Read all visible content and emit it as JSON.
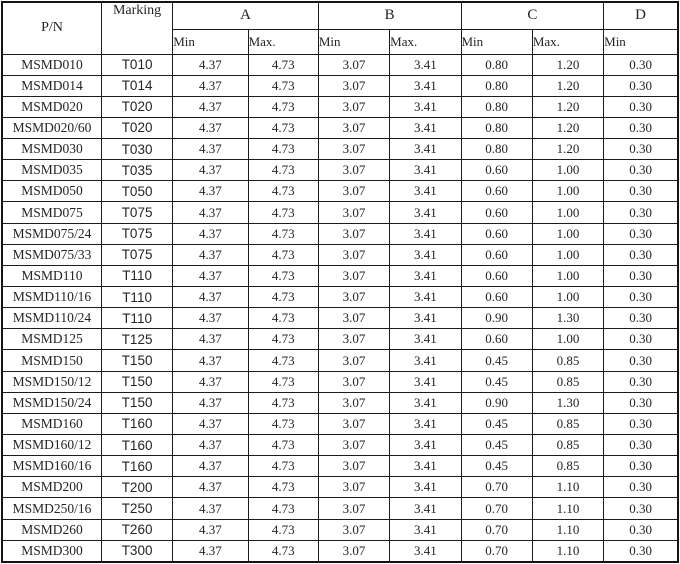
{
  "table": {
    "headers": {
      "pn": "P/N",
      "marking": "Marking",
      "group_a": "A",
      "group_b": "B",
      "group_c": "C",
      "group_d": "D",
      "min": "Min",
      "max": "Max."
    },
    "colors": {
      "border": "#1c1c1c",
      "text": "#242424",
      "background": "#ffffff"
    },
    "rows": [
      {
        "pn": "MSMD010",
        "marking": "T010",
        "a_min": "4.37",
        "a_max": "4.73",
        "b_min": "3.07",
        "b_max": "3.41",
        "c_min": "0.80",
        "c_max": "1.20",
        "d_min": "0.30"
      },
      {
        "pn": "MSMD014",
        "marking": "T014",
        "a_min": "4.37",
        "a_max": "4.73",
        "b_min": "3.07",
        "b_max": "3.41",
        "c_min": "0.80",
        "c_max": "1.20",
        "d_min": "0.30"
      },
      {
        "pn": "MSMD020",
        "marking": "T020",
        "a_min": "4.37",
        "a_max": "4.73",
        "b_min": "3.07",
        "b_max": "3.41",
        "c_min": "0.80",
        "c_max": "1.20",
        "d_min": "0.30"
      },
      {
        "pn": "MSMD020/60",
        "marking": "T020",
        "a_min": "4.37",
        "a_max": "4.73",
        "b_min": "3.07",
        "b_max": "3.41",
        "c_min": "0.80",
        "c_max": "1.20",
        "d_min": "0.30"
      },
      {
        "pn": "MSMD030",
        "marking": "T030",
        "a_min": "4.37",
        "a_max": "4.73",
        "b_min": "3.07",
        "b_max": "3.41",
        "c_min": "0.80",
        "c_max": "1.20",
        "d_min": "0.30"
      },
      {
        "pn": "MSMD035",
        "marking": "T035",
        "a_min": "4.37",
        "a_max": "4.73",
        "b_min": "3.07",
        "b_max": "3.41",
        "c_min": "0.60",
        "c_max": "1.00",
        "d_min": "0.30"
      },
      {
        "pn": "MSMD050",
        "marking": "T050",
        "a_min": "4.37",
        "a_max": "4.73",
        "b_min": "3.07",
        "b_max": "3.41",
        "c_min": "0.60",
        "c_max": "1.00",
        "d_min": "0.30"
      },
      {
        "pn": "MSMD075",
        "marking": "T075",
        "a_min": "4.37",
        "a_max": "4.73",
        "b_min": "3.07",
        "b_max": "3.41",
        "c_min": "0.60",
        "c_max": "1.00",
        "d_min": "0.30"
      },
      {
        "pn": "MSMD075/24",
        "marking": "T075",
        "a_min": "4.37",
        "a_max": "4.73",
        "b_min": "3.07",
        "b_max": "3.41",
        "c_min": "0.60",
        "c_max": "1.00",
        "d_min": "0.30"
      },
      {
        "pn": "MSMD075/33",
        "marking": "T075",
        "a_min": "4.37",
        "a_max": "4.73",
        "b_min": "3.07",
        "b_max": "3.41",
        "c_min": "0.60",
        "c_max": "1.00",
        "d_min": "0.30"
      },
      {
        "pn": "MSMD110",
        "marking": "T110",
        "a_min": "4.37",
        "a_max": "4.73",
        "b_min": "3.07",
        "b_max": "3.41",
        "c_min": "0.60",
        "c_max": "1.00",
        "d_min": "0.30"
      },
      {
        "pn": "MSMD110/16",
        "marking": "T110",
        "a_min": "4.37",
        "a_max": "4.73",
        "b_min": "3.07",
        "b_max": "3.41",
        "c_min": "0.60",
        "c_max": "1.00",
        "d_min": "0.30"
      },
      {
        "pn": "MSMD110/24",
        "marking": "T110",
        "a_min": "4.37",
        "a_max": "4.73",
        "b_min": "3.07",
        "b_max": "3.41",
        "c_min": "0.90",
        "c_max": "1.30",
        "d_min": "0.30"
      },
      {
        "pn": "MSMD125",
        "marking": "T125",
        "a_min": "4.37",
        "a_max": "4.73",
        "b_min": "3.07",
        "b_max": "3.41",
        "c_min": "0.60",
        "c_max": "1.00",
        "d_min": "0.30"
      },
      {
        "pn": "MSMD150",
        "marking": "T150",
        "a_min": "4.37",
        "a_max": "4.73",
        "b_min": "3.07",
        "b_max": "3.41",
        "c_min": "0.45",
        "c_max": "0.85",
        "d_min": "0.30"
      },
      {
        "pn": "MSMD150/12",
        "marking": "T150",
        "a_min": "4.37",
        "a_max": "4.73",
        "b_min": "3.07",
        "b_max": "3.41",
        "c_min": "0.45",
        "c_max": "0.85",
        "d_min": "0.30"
      },
      {
        "pn": "MSMD150/24",
        "marking": "T150",
        "a_min": "4.37",
        "a_max": "4.73",
        "b_min": "3.07",
        "b_max": "3.41",
        "c_min": "0.90",
        "c_max": "1.30",
        "d_min": "0.30"
      },
      {
        "pn": "MSMD160",
        "marking": "T160",
        "a_min": "4.37",
        "a_max": "4.73",
        "b_min": "3.07",
        "b_max": "3.41",
        "c_min": "0.45",
        "c_max": "0.85",
        "d_min": "0.30"
      },
      {
        "pn": "MSMD160/12",
        "marking": "T160",
        "a_min": "4.37",
        "a_max": "4.73",
        "b_min": "3.07",
        "b_max": "3.41",
        "c_min": "0.45",
        "c_max": "0.85",
        "d_min": "0.30"
      },
      {
        "pn": "MSMD160/16",
        "marking": "T160",
        "a_min": "4.37",
        "a_max": "4.73",
        "b_min": "3.07",
        "b_max": "3.41",
        "c_min": "0.45",
        "c_max": "0.85",
        "d_min": "0.30"
      },
      {
        "pn": "MSMD200",
        "marking": "T200",
        "a_min": "4.37",
        "a_max": "4.73",
        "b_min": "3.07",
        "b_max": "3.41",
        "c_min": "0.70",
        "c_max": "1.10",
        "d_min": "0.30"
      },
      {
        "pn": "MSMD250/16",
        "marking": "T250",
        "a_min": "4.37",
        "a_max": "4.73",
        "b_min": "3.07",
        "b_max": "3.41",
        "c_min": "0.70",
        "c_max": "1.10",
        "d_min": "0.30"
      },
      {
        "pn": "MSMD260",
        "marking": "T260",
        "a_min": "4.37",
        "a_max": "4.73",
        "b_min": "3.07",
        "b_max": "3.41",
        "c_min": "0.70",
        "c_max": "1.10",
        "d_min": "0.30"
      },
      {
        "pn": "MSMD300",
        "marking": "T300",
        "a_min": "4.37",
        "a_max": "4.73",
        "b_min": "3.07",
        "b_max": "3.41",
        "c_min": "0.70",
        "c_max": "1.10",
        "d_min": "0.30"
      }
    ]
  }
}
